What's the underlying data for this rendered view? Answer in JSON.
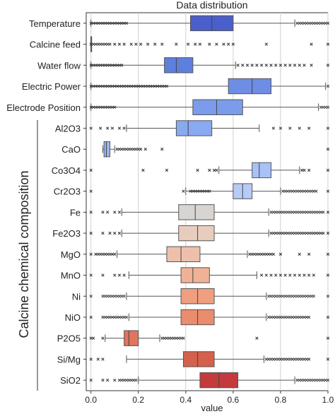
{
  "chart_data": {
    "type": "box",
    "title": "Data distribution",
    "xlabel": "value",
    "group_label": "Calcine chemical composition",
    "xlim": [
      -0.02,
      1.0
    ],
    "xticks": [
      "0.0",
      "0.2",
      "0.4",
      "0.6",
      "0.8",
      "1.0"
    ],
    "xtick_values": [
      0.0,
      0.2,
      0.4,
      0.6,
      0.8,
      1.0
    ],
    "grid": "vertical",
    "palette": "coolwarm (blue top to red bottom)",
    "variables": [
      {
        "name": "Temperature",
        "color": "#4a5fc9",
        "whislo": 0.0,
        "q1": 0.42,
        "median": 0.51,
        "q3": 0.6,
        "whishi": 0.86,
        "outliers": [
          0.0,
          0.01,
          0.02,
          0.03,
          0.04,
          0.05,
          0.06,
          0.07,
          0.08,
          0.09,
          0.1,
          0.11,
          0.12,
          0.13,
          0.14,
          0.15,
          0.87,
          0.88,
          0.89,
          0.9,
          0.91,
          0.92,
          0.93,
          0.94,
          0.95,
          0.96,
          0.97,
          0.98,
          0.99,
          1.0
        ]
      },
      {
        "name": "Calcine feed",
        "color": "#5470d2",
        "whislo": 0.0,
        "q1": 0.0,
        "median": 0.0,
        "q3": 0.0,
        "whishi": 0.0,
        "outliers": [
          0.0,
          0.01,
          0.02,
          0.03,
          0.04,
          0.05,
          0.06,
          0.07,
          0.08,
          0.1,
          0.12,
          0.14,
          0.17,
          0.19,
          0.21,
          0.24,
          0.27,
          0.3,
          0.36,
          0.41,
          0.44,
          0.46,
          0.5,
          0.53,
          0.56,
          0.58,
          0.6,
          0.74,
          0.93,
          1.0
        ]
      },
      {
        "name": "Water flow",
        "color": "#5f7fdc",
        "whislo": 0.0,
        "q1": 0.31,
        "median": 0.36,
        "q3": 0.43,
        "whishi": 0.61,
        "outliers": [
          0.0,
          0.01,
          0.02,
          0.03,
          0.04,
          0.05,
          0.06,
          0.07,
          0.08,
          0.09,
          0.1,
          0.11,
          0.12,
          0.13,
          0.62,
          0.64,
          0.66,
          0.68,
          0.7,
          0.72,
          0.74,
          0.76,
          0.78,
          0.8,
          0.82,
          0.84,
          0.86,
          0.88,
          0.9,
          0.93,
          1.0
        ]
      },
      {
        "name": "Electric Power",
        "color": "#6d8ee4",
        "whislo": 0.0,
        "q1": 0.58,
        "median": 0.68,
        "q3": 0.76,
        "whishi": 0.99,
        "outliers": [
          0.0,
          0.01,
          0.02,
          0.03,
          0.04,
          0.05,
          0.06,
          0.07,
          0.08,
          0.09,
          0.1,
          0.11,
          0.12,
          0.13,
          0.14,
          0.15,
          0.16,
          0.17,
          0.18,
          0.19,
          0.2,
          0.21,
          0.22,
          0.23,
          0.24,
          0.25,
          0.26,
          0.27,
          0.28,
          0.29,
          0.3,
          0.31,
          0.32,
          1.0
        ]
      },
      {
        "name": "Electrode Position",
        "color": "#7b9ceb",
        "whislo": 0.0,
        "q1": 0.43,
        "median": 0.53,
        "q3": 0.64,
        "whishi": 0.96,
        "outliers": [
          0.0,
          0.01,
          0.02,
          0.03,
          0.04,
          0.05,
          0.06,
          0.07,
          0.08,
          0.09,
          0.1,
          0.97,
          0.98,
          0.99,
          1.0
        ]
      },
      {
        "name": "Al2O3",
        "color": "#89a9f0",
        "whislo": 0.15,
        "q1": 0.36,
        "median": 0.41,
        "q3": 0.51,
        "whishi": 0.71,
        "outliers": [
          0.0,
          0.04,
          0.07,
          0.09,
          0.12,
          0.14,
          0.77,
          0.8,
          0.84,
          0.88,
          0.92,
          1.0
        ]
      },
      {
        "name": "CaO",
        "color": "#99b6f4",
        "whislo": 0.05,
        "q1": 0.055,
        "median": 0.065,
        "q3": 0.08,
        "whishi": 0.1,
        "outliers": [
          0.11,
          0.12,
          0.13,
          0.14,
          0.15,
          0.16,
          0.17,
          0.18,
          0.19,
          0.2,
          0.21,
          0.23,
          0.3,
          1.0
        ]
      },
      {
        "name": "Co3O4",
        "color": "#a8c1f6",
        "whislo": 0.54,
        "q1": 0.68,
        "median": 0.71,
        "q3": 0.76,
        "whishi": 0.88,
        "outliers": [
          0.0,
          0.22,
          0.32,
          0.45,
          0.5,
          0.52,
          0.53,
          0.89,
          0.9,
          0.92,
          1.0
        ]
      },
      {
        "name": "Cr2O3",
        "color": "#b7cbf6",
        "whislo": 0.4,
        "q1": 0.6,
        "median": 0.64,
        "q3": 0.68,
        "whishi": 0.8,
        "outliers": [
          0.0,
          0.39,
          0.42,
          0.43,
          0.44,
          0.45,
          0.46,
          0.47,
          0.48,
          0.49,
          0.5,
          0.81,
          0.82,
          0.83,
          0.84,
          0.85,
          0.86,
          0.87,
          0.88,
          0.89,
          0.9,
          0.91,
          0.92,
          0.93,
          0.94,
          0.95,
          1.0
        ]
      },
      {
        "name": "Fe",
        "color": "#d8d4d1",
        "whislo": 0.13,
        "q1": 0.37,
        "median": 0.44,
        "q3": 0.52,
        "whishi": 0.75,
        "outliers": [
          0.0,
          0.05,
          0.07,
          0.1,
          0.12,
          0.76,
          0.77,
          0.78,
          0.79,
          0.8,
          0.81,
          0.82,
          0.83,
          0.84,
          0.85,
          0.86,
          0.87,
          0.88,
          0.89,
          0.9,
          0.91,
          0.92,
          0.93,
          0.94,
          0.95,
          0.96,
          0.97,
          0.98,
          1.0
        ]
      },
      {
        "name": "Fe2O3",
        "color": "#e8cdbf",
        "whislo": 0.13,
        "q1": 0.37,
        "median": 0.45,
        "q3": 0.52,
        "whishi": 0.75,
        "outliers": [
          0.0,
          0.05,
          0.08,
          0.1,
          0.12,
          0.76,
          0.77,
          0.78,
          0.79,
          0.8,
          0.81,
          0.82,
          0.83,
          0.84,
          0.85,
          0.86,
          0.87,
          0.88,
          0.89,
          0.9,
          0.91,
          0.92,
          0.93,
          0.94,
          0.95,
          0.96,
          0.97,
          0.98,
          1.0
        ]
      },
      {
        "name": "MgO",
        "color": "#eec0ab",
        "whislo": 0.11,
        "q1": 0.32,
        "median": 0.38,
        "q3": 0.46,
        "whishi": 0.66,
        "outliers": [
          0.0,
          0.02,
          0.03,
          0.04,
          0.05,
          0.06,
          0.07,
          0.08,
          0.09,
          0.1,
          0.67,
          0.68,
          0.69,
          0.7,
          0.71,
          0.72,
          0.73,
          0.74,
          0.75,
          0.76,
          0.77,
          0.8,
          0.88,
          0.92,
          1.0
        ]
      },
      {
        "name": "MnO",
        "color": "#f0b296",
        "whislo": 0.16,
        "q1": 0.38,
        "median": 0.43,
        "q3": 0.5,
        "whishi": 0.7,
        "outliers": [
          0.0,
          0.05,
          0.1,
          0.12,
          0.14,
          0.72,
          0.74,
          0.76,
          0.78,
          0.8,
          0.82,
          0.84,
          0.86,
          0.88,
          0.9,
          0.92,
          0.94,
          1.0
        ]
      },
      {
        "name": "Ni",
        "color": "#ef9f80",
        "whislo": 0.15,
        "q1": 0.38,
        "median": 0.45,
        "q3": 0.52,
        "whishi": 0.74,
        "outliers": [
          0.0,
          0.05,
          0.06,
          0.07,
          0.08,
          0.09,
          0.1,
          0.11,
          0.12,
          0.13,
          0.14,
          0.75,
          0.76,
          0.77,
          0.78,
          0.79,
          0.8,
          0.81,
          0.82,
          0.83,
          0.84,
          0.85,
          0.86,
          0.87,
          0.88,
          0.89,
          0.9,
          0.91,
          0.92,
          0.93,
          0.94,
          1.0
        ]
      },
      {
        "name": "NiO",
        "color": "#ea8c6e",
        "whislo": 0.16,
        "q1": 0.38,
        "median": 0.45,
        "q3": 0.52,
        "whishi": 0.74,
        "outliers": [
          0.0,
          0.05,
          0.06,
          0.07,
          0.08,
          0.09,
          0.1,
          0.11,
          0.12,
          0.13,
          0.14,
          0.15,
          0.75,
          0.76,
          0.77,
          0.78,
          0.79,
          0.8,
          0.81,
          0.82,
          0.83,
          0.84,
          0.85,
          0.86,
          0.87,
          0.88,
          0.89,
          0.9,
          0.91,
          0.92,
          1.0
        ]
      },
      {
        "name": "P2O5",
        "color": "#e0745c",
        "whislo": 0.06,
        "q1": 0.14,
        "median": 0.16,
        "q3": 0.2,
        "whishi": 0.29,
        "outliers": [
          0.0,
          0.01,
          0.05,
          0.3,
          0.31,
          0.32,
          0.33,
          0.34,
          0.35,
          0.36,
          0.37,
          0.38,
          0.39,
          0.7,
          1.0
        ]
      },
      {
        "name": "Si/Mg",
        "color": "#d5604c",
        "whislo": 0.15,
        "q1": 0.39,
        "median": 0.45,
        "q3": 0.52,
        "whishi": 0.73,
        "outliers": [
          0.0,
          0.03,
          0.05,
          0.74,
          0.75,
          0.76,
          0.77,
          0.78,
          0.79,
          0.8,
          0.81,
          0.82,
          0.83,
          0.84,
          0.85,
          0.86,
          0.87,
          0.88,
          0.89,
          0.9,
          0.91,
          0.92,
          1.0
        ]
      },
      {
        "name": "SiO2",
        "color": "#c43b3c",
        "whislo": 0.2,
        "q1": 0.46,
        "median": 0.54,
        "q3": 0.62,
        "whishi": 0.86,
        "outliers": [
          0.0,
          0.05,
          0.07,
          0.1,
          0.12,
          0.13,
          0.14,
          0.15,
          0.16,
          0.17,
          0.18,
          0.19,
          0.87,
          0.88,
          0.89,
          0.9,
          0.91,
          0.92,
          0.93,
          0.94,
          0.95,
          0.96,
          0.97,
          0.98,
          0.99,
          1.0
        ]
      }
    ]
  }
}
